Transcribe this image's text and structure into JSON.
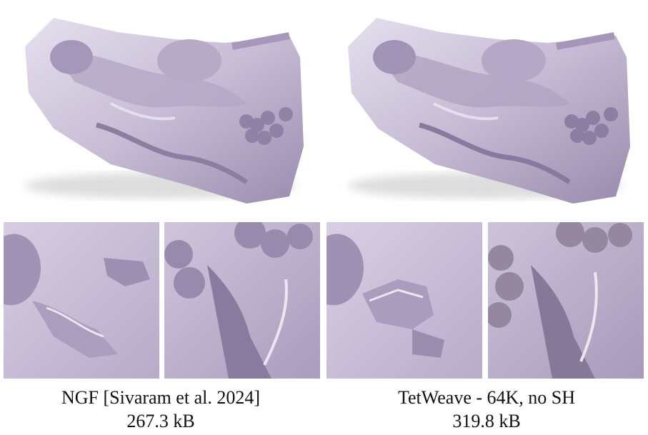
{
  "figure": {
    "columns": [
      {
        "method_label": "NGF [Sivaram et al. 2024]",
        "size_label": "267.3 kB"
      },
      {
        "method_label": "TetWeave - 64K, no SH",
        "size_label": "319.8 kB"
      }
    ],
    "colors": {
      "mesh_base": "#c9bfd6",
      "mesh_shadow": "#6f6382",
      "mesh_light": "#ece7f2",
      "background": "#ffffff"
    }
  }
}
